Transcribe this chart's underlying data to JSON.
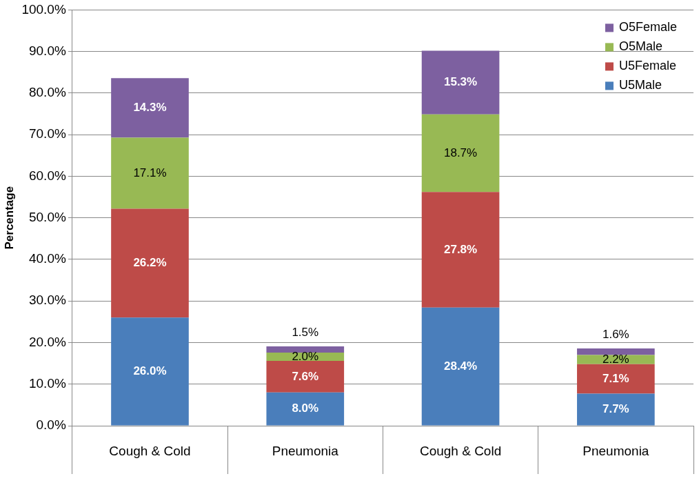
{
  "chart_data": {
    "type": "bar",
    "stacked": true,
    "ylabel": "Percentage",
    "categories": [
      "Cough & Cold",
      "Pneumonia",
      "Cough & Cold",
      "Pneumonia"
    ],
    "series": [
      {
        "name": "U5Male",
        "color": "#4a7ebb",
        "values": [
          26.0,
          8.0,
          28.4,
          7.7
        ],
        "value_labels": [
          "26.0%",
          "8.0%",
          "28.4%",
          "7.7%"
        ]
      },
      {
        "name": "U5Female",
        "color": "#be4b48",
        "values": [
          26.2,
          7.6,
          27.8,
          7.1
        ],
        "value_labels": [
          "26.2%",
          "7.6%",
          "27.8%",
          "7.1%"
        ]
      },
      {
        "name": "O5Male",
        "color": "#98b954",
        "values": [
          17.1,
          2.0,
          18.7,
          2.2
        ],
        "value_labels": [
          "17.1%",
          "2.0%",
          "18.7%",
          "2.2%"
        ]
      },
      {
        "name": "O5Female",
        "color": "#7d60a0",
        "values": [
          14.3,
          1.5,
          15.3,
          1.6
        ],
        "value_labels": [
          "14.3%",
          "1.5%",
          "15.3%",
          "1.6%"
        ]
      }
    ],
    "ylim": [
      0,
      100
    ],
    "yticks": [
      {
        "value": 0,
        "label": "0.0%"
      },
      {
        "value": 10,
        "label": "10.0%"
      },
      {
        "value": 20,
        "label": "20.0%"
      },
      {
        "value": 30,
        "label": "30.0%"
      },
      {
        "value": 40,
        "label": "40.0%"
      },
      {
        "value": 50,
        "label": "50.0%"
      },
      {
        "value": 60,
        "label": "60.0%"
      },
      {
        "value": 70,
        "label": "70.0%"
      },
      {
        "value": 80,
        "label": "80.0%"
      },
      {
        "value": 90,
        "label": "90.0%"
      },
      {
        "value": 100,
        "label": "100.0%"
      }
    ],
    "grid": "y",
    "legend": "top right"
  }
}
